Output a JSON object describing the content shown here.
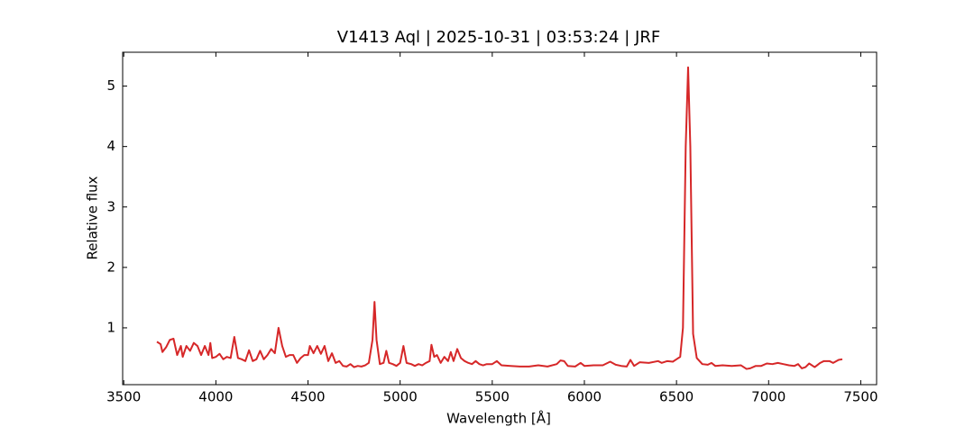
{
  "chart_data": {
    "type": "line",
    "title": "V1413 Aql | 2025-10-31 | 03:53:24 | JRF",
    "x_label": "Wavelength [Å]",
    "y_label": "Relative flux",
    "x": [
      3680,
      3700,
      3710,
      3730,
      3750,
      3770,
      3790,
      3810,
      3820,
      3840,
      3860,
      3880,
      3900,
      3920,
      3940,
      3960,
      3970,
      3980,
      4000,
      4020,
      4040,
      4060,
      4080,
      4100,
      4120,
      4140,
      4160,
      4180,
      4200,
      4220,
      4240,
      4260,
      4280,
      4300,
      4320,
      4340,
      4360,
      4380,
      4400,
      4420,
      4440,
      4460,
      4480,
      4500,
      4510,
      4530,
      4550,
      4570,
      4590,
      4610,
      4630,
      4650,
      4670,
      4690,
      4710,
      4730,
      4750,
      4770,
      4790,
      4810,
      4830,
      4850,
      4861,
      4872,
      4890,
      4910,
      4925,
      4940,
      4960,
      4980,
      5000,
      5018,
      5035,
      5060,
      5080,
      5100,
      5120,
      5140,
      5160,
      5170,
      5185,
      5200,
      5220,
      5240,
      5260,
      5275,
      5290,
      5310,
      5330,
      5350,
      5370,
      5390,
      5410,
      5430,
      5450,
      5470,
      5500,
      5525,
      5550,
      5600,
      5650,
      5700,
      5750,
      5800,
      5850,
      5870,
      5890,
      5910,
      5950,
      5980,
      6000,
      6050,
      6100,
      6140,
      6170,
      6200,
      6230,
      6250,
      6270,
      6300,
      6350,
      6400,
      6420,
      6450,
      6480,
      6500,
      6520,
      6535,
      6550,
      6563,
      6575,
      6590,
      6610,
      6640,
      6670,
      6690,
      6710,
      6750,
      6800,
      6850,
      6880,
      6900,
      6930,
      6960,
      6990,
      7020,
      7050,
      7080,
      7110,
      7140,
      7160,
      7180,
      7200,
      7220,
      7250,
      7280,
      7300,
      7330,
      7350,
      7380,
      7400
    ],
    "series": [
      {
        "color": "#d62728",
        "values": [
          0.77,
          0.73,
          0.6,
          0.68,
          0.8,
          0.82,
          0.55,
          0.7,
          0.52,
          0.7,
          0.62,
          0.75,
          0.7,
          0.55,
          0.7,
          0.55,
          0.75,
          0.5,
          0.52,
          0.57,
          0.48,
          0.52,
          0.5,
          0.85,
          0.5,
          0.48,
          0.45,
          0.63,
          0.45,
          0.48,
          0.62,
          0.48,
          0.55,
          0.65,
          0.58,
          1.0,
          0.7,
          0.52,
          0.55,
          0.55,
          0.42,
          0.5,
          0.55,
          0.55,
          0.7,
          0.58,
          0.7,
          0.57,
          0.7,
          0.45,
          0.58,
          0.42,
          0.45,
          0.37,
          0.36,
          0.4,
          0.35,
          0.37,
          0.36,
          0.38,
          0.42,
          0.8,
          1.43,
          0.8,
          0.4,
          0.42,
          0.62,
          0.42,
          0.4,
          0.37,
          0.42,
          0.7,
          0.42,
          0.4,
          0.37,
          0.4,
          0.38,
          0.42,
          0.45,
          0.72,
          0.52,
          0.55,
          0.42,
          0.52,
          0.45,
          0.6,
          0.45,
          0.65,
          0.5,
          0.45,
          0.42,
          0.4,
          0.45,
          0.4,
          0.38,
          0.4,
          0.4,
          0.45,
          0.38,
          0.37,
          0.36,
          0.36,
          0.38,
          0.36,
          0.4,
          0.46,
          0.45,
          0.37,
          0.36,
          0.42,
          0.37,
          0.38,
          0.38,
          0.44,
          0.39,
          0.37,
          0.36,
          0.47,
          0.37,
          0.43,
          0.42,
          0.45,
          0.42,
          0.45,
          0.44,
          0.48,
          0.52,
          1.0,
          4.0,
          5.31,
          4.0,
          0.9,
          0.5,
          0.4,
          0.39,
          0.42,
          0.37,
          0.38,
          0.37,
          0.38,
          0.32,
          0.33,
          0.37,
          0.37,
          0.41,
          0.4,
          0.42,
          0.4,
          0.38,
          0.37,
          0.4,
          0.33,
          0.35,
          0.41,
          0.35,
          0.42,
          0.45,
          0.45,
          0.42,
          0.47,
          0.48
        ]
      }
    ],
    "xlim": [
      3494,
      7586
    ],
    "ylim": [
      0.06,
      5.56
    ],
    "xticks": [
      3500,
      4000,
      4500,
      5000,
      5500,
      6000,
      6500,
      7000,
      7500
    ],
    "yticks": [
      1,
      2,
      3,
      4,
      5
    ]
  }
}
